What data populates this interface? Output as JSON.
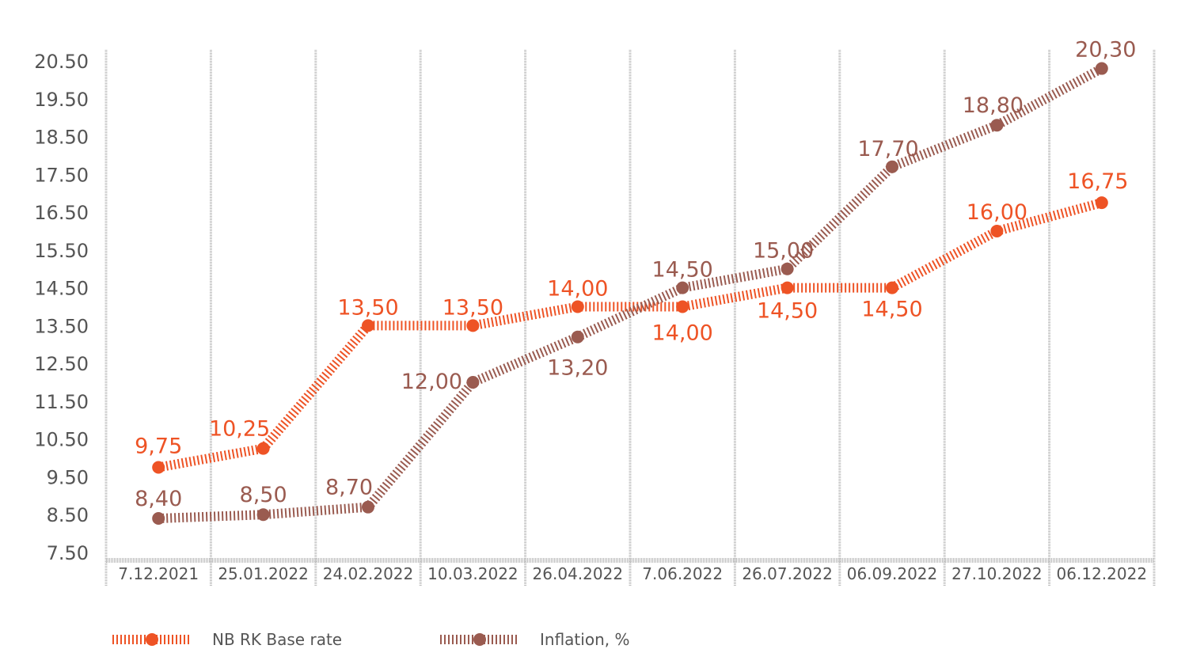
{
  "chart_data": {
    "type": "line",
    "title": "",
    "xlabel": "",
    "ylabel": "",
    "ylim": [
      7.5,
      20.5
    ],
    "yticks": [
      "7.50",
      "8.50",
      "9.50",
      "10.50",
      "11.50",
      "12.50",
      "13.50",
      "14.50",
      "15.50",
      "16.50",
      "17.50",
      "18.50",
      "19.50",
      "20.50"
    ],
    "categories": [
      "7.12.2021",
      "25.01.2022",
      "24.02.2022",
      "10.03.2022",
      "26.04.2022",
      "7.06.2022",
      "26.07.2022",
      "06.09.2022",
      "27.10.2022",
      "06.12.2022"
    ],
    "grid": "vertical",
    "legend_position": "bottom-left",
    "series": [
      {
        "name": "NB RK Base rate",
        "color": "#EE5325",
        "values": [
          9.75,
          10.25,
          13.5,
          13.5,
          14.0,
          14.0,
          14.5,
          14.5,
          16.0,
          16.75
        ],
        "labels": [
          "9,75",
          "10,25",
          "13,50",
          "13,50",
          "14,00",
          "14,00",
          "14,50",
          "14,50",
          "16,00",
          "16,75"
        ]
      },
      {
        "name": "Inflation, %",
        "color": "#9A5B50",
        "values": [
          8.4,
          8.5,
          8.7,
          12.0,
          13.2,
          14.5,
          15.0,
          17.7,
          18.8,
          20.3
        ],
        "labels": [
          "8,40",
          "8,50",
          "8,70",
          "12,00",
          "13,20",
          "14,50",
          "15,00",
          "17,70",
          "18,80",
          "20,30"
        ]
      }
    ]
  }
}
